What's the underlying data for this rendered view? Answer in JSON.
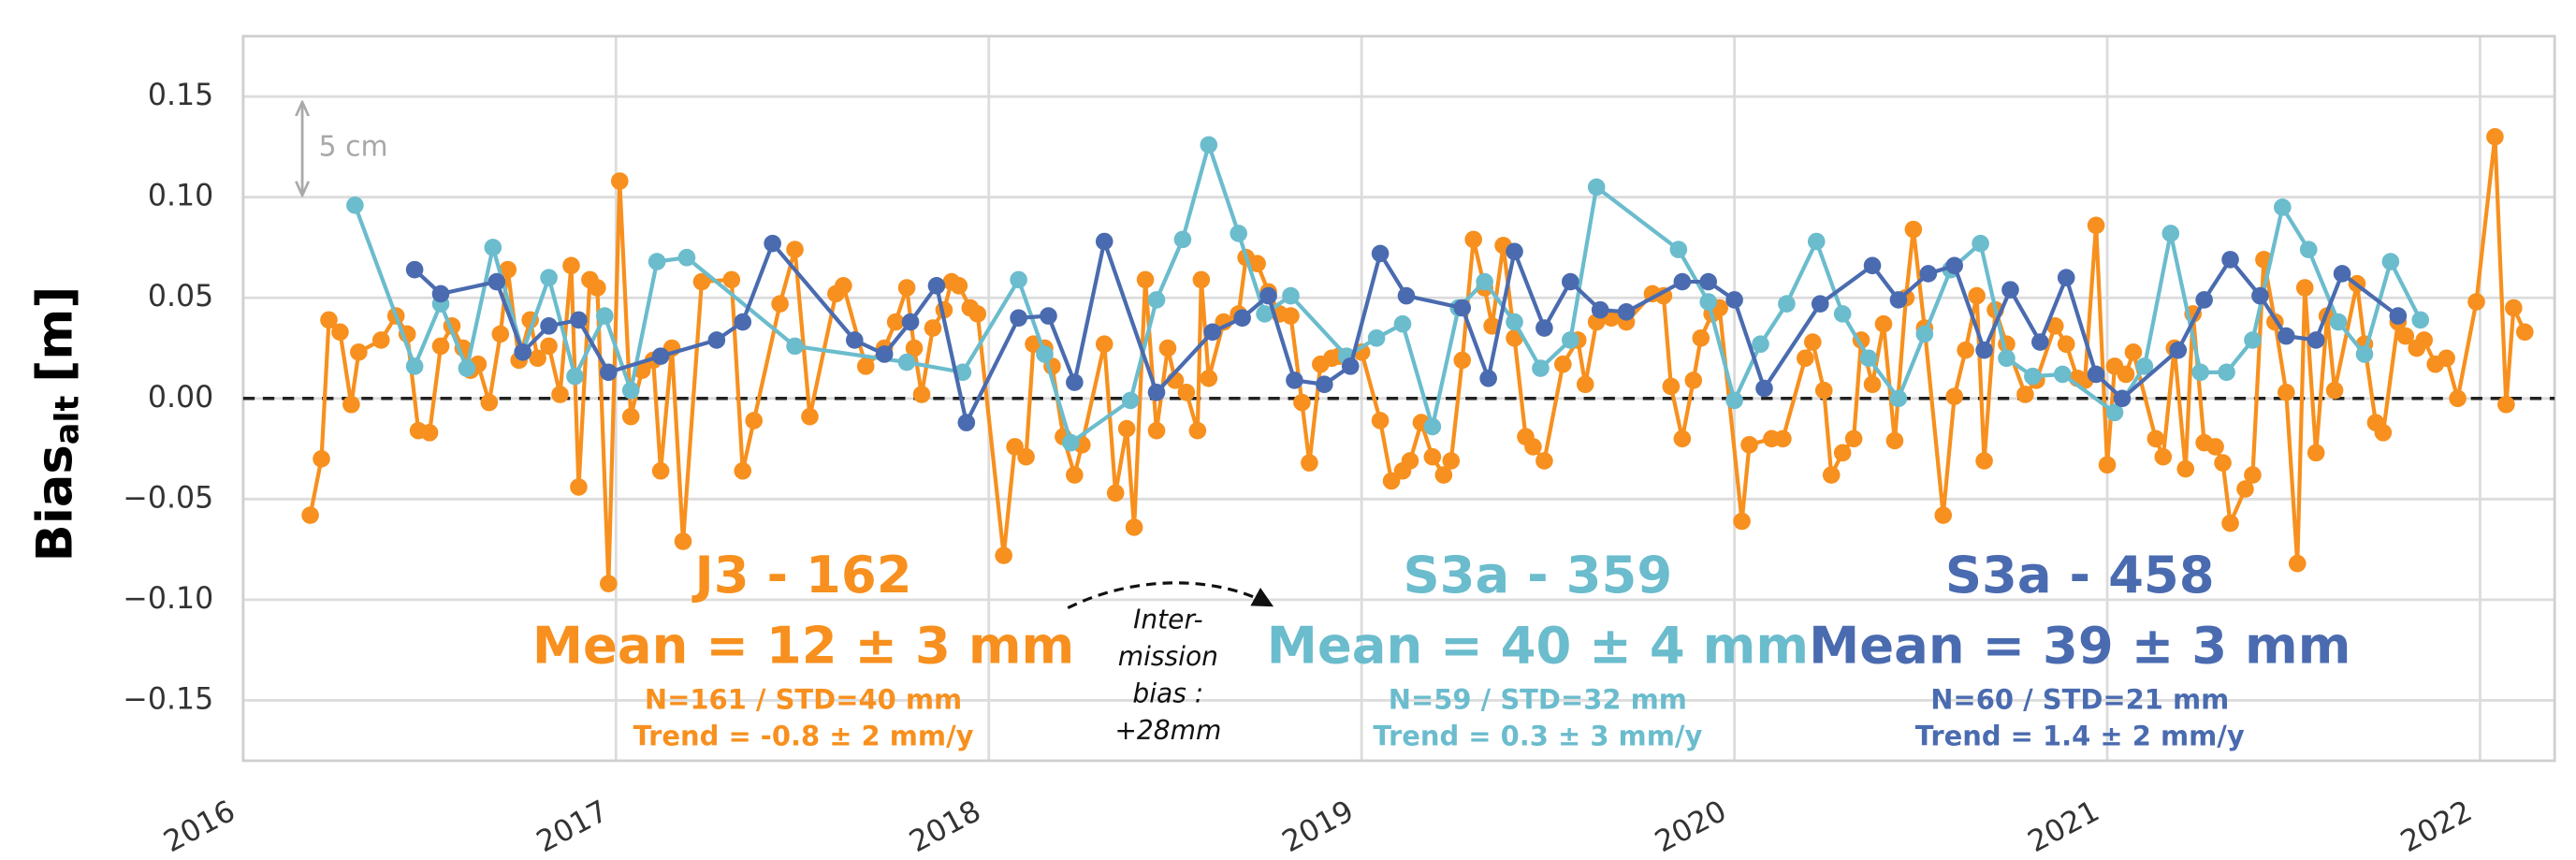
{
  "chart_data": {
    "type": "line",
    "ylabel": {
      "main": "Bias",
      "sub": "alt",
      "unit": "[m]"
    },
    "xlim": [
      2016,
      2022.2
    ],
    "xticks": [
      2016,
      2017,
      2018,
      2019,
      2020,
      2021,
      2022
    ],
    "ylim": [
      -0.18,
      0.18
    ],
    "yticks": [
      0.15,
      {
        "value": 0.1,
        "label": "0.10"
      },
      0.05,
      {
        "value": 0,
        "label": "0.00"
      },
      {
        "value": -0.05,
        "label": "−0.05"
      },
      {
        "value": -0.1,
        "label": "−0.10"
      },
      {
        "value": -0.15,
        "label": "−0.15"
      }
    ],
    "grid": true,
    "hline": 0,
    "series": [
      {
        "name": "J3 - 162",
        "color": "#f7901e",
        "mean": "Mean = 12 ± 3 mm",
        "stats": "N=161 / STD=40 mm",
        "trend": "Trend = -0.8 ± 2 mm/y",
        "x": [
          2016.18,
          2016.21,
          2016.23,
          2016.26,
          2016.29,
          2016.31,
          2016.37,
          2016.41,
          2016.44,
          2016.47,
          2016.5,
          2016.53,
          2016.56,
          2016.59,
          2016.61,
          2016.63,
          2016.66,
          2016.69,
          2016.71,
          2016.74,
          2016.77,
          2016.79,
          2016.82,
          2016.85,
          2016.88,
          2016.9,
          2016.93,
          2016.95,
          2016.98,
          2017.01,
          2017.04,
          2017.07,
          2017.1,
          2017.12,
          2017.15,
          2017.18,
          2017.23,
          2017.31,
          2017.34,
          2017.37,
          2017.44,
          2017.48,
          2017.52,
          2017.59,
          2017.61,
          2017.67,
          2017.72,
          2017.75,
          2017.78,
          2017.8,
          2017.82,
          2017.85,
          2017.88,
          2017.9,
          2017.92,
          2017.95,
          2017.97,
          2018.04,
          2018.07,
          2018.1,
          2018.12,
          2018.15,
          2018.17,
          2018.2,
          2018.23,
          2018.25,
          2018.31,
          2018.34,
          2018.37,
          2018.39,
          2018.42,
          2018.45,
          2018.48,
          2018.5,
          2018.53,
          2018.56,
          2018.57,
          2018.59,
          2018.63,
          2018.67,
          2018.69,
          2018.72,
          2018.75,
          2018.78,
          2018.81,
          2018.84,
          2018.86,
          2018.89,
          2018.92,
          2018.94,
          2019.0,
          2019.05,
          2019.08,
          2019.11,
          2019.13,
          2019.16,
          2019.19,
          2019.22,
          2019.24,
          2019.27,
          2019.3,
          2019.33,
          2019.35,
          2019.38,
          2019.41,
          2019.44,
          2019.46,
          2019.49,
          2019.54,
          2019.58,
          2019.6,
          2019.63,
          2019.67,
          2019.71,
          2019.78,
          2019.81,
          2019.83,
          2019.86,
          2019.89,
          2019.91,
          2019.94,
          2019.96,
          2020.02,
          2020.04,
          2020.1,
          2020.13,
          2020.19,
          2020.21,
          2020.24,
          2020.26,
          2020.29,
          2020.32,
          2020.34,
          2020.37,
          2020.4,
          2020.43,
          2020.46,
          2020.48,
          2020.51,
          2020.56,
          2020.59,
          2020.62,
          2020.65,
          2020.67,
          2020.7,
          2020.73,
          2020.78,
          2020.81,
          2020.86,
          2020.89,
          2020.92,
          2020.94,
          2020.97,
          2021.0,
          2021.02,
          2021.05,
          2021.07,
          2021.13,
          2021.15,
          2021.18,
          2021.21,
          2021.23,
          2021.26,
          2021.29,
          2021.31,
          2021.33,
          2021.37,
          2021.39,
          2021.42,
          2021.45,
          2021.48,
          2021.51,
          2021.53,
          2021.56,
          2021.59,
          2021.61,
          2021.67,
          2021.69,
          2021.72,
          2021.74,
          2021.78,
          2021.8,
          2021.83,
          2021.85,
          2021.88,
          2021.91,
          2021.94,
          2021.99,
          2022.04,
          2022.07,
          2022.09,
          2022.12
        ],
        "values": [
          -0.058,
          -0.03,
          0.039,
          0.033,
          -0.003,
          0.023,
          0.029,
          0.041,
          0.032,
          -0.016,
          -0.017,
          0.026,
          0.036,
          0.025,
          0.014,
          0.017,
          -0.002,
          0.032,
          0.064,
          0.019,
          0.039,
          0.02,
          0.026,
          0.002,
          0.066,
          -0.044,
          0.059,
          0.055,
          -0.092,
          0.108,
          -0.009,
          0.014,
          0.019,
          -0.036,
          0.025,
          -0.071,
          0.058,
          0.059,
          -0.036,
          -0.011,
          0.047,
          0.074,
          -0.009,
          0.052,
          0.056,
          0.016,
          0.025,
          0.038,
          0.055,
          0.025,
          0.002,
          0.035,
          0.044,
          0.058,
          0.056,
          0.045,
          0.042,
          -0.078,
          -0.024,
          -0.029,
          0.027,
          0.025,
          0.016,
          -0.019,
          -0.038,
          -0.023,
          0.027,
          -0.047,
          -0.015,
          -0.064,
          0.059,
          -0.016,
          0.025,
          0.009,
          0.003,
          -0.016,
          0.059,
          0.01,
          0.038,
          0.042,
          0.07,
          0.067,
          0.053,
          0.042,
          0.041,
          -0.002,
          -0.032,
          0.017,
          0.02,
          0.021,
          0.023,
          -0.011,
          -0.041,
          -0.036,
          -0.031,
          -0.012,
          -0.029,
          -0.038,
          -0.031,
          0.019,
          0.079,
          0.055,
          0.036,
          0.076,
          0.03,
          -0.019,
          -0.024,
          -0.031,
          0.017,
          0.029,
          0.007,
          0.038,
          0.04,
          0.038,
          0.052,
          0.051,
          0.006,
          -0.02,
          0.009,
          0.03,
          0.042,
          0.045,
          -0.061,
          -0.023,
          -0.02,
          -0.02,
          0.02,
          0.028,
          0.004,
          -0.038,
          -0.027,
          -0.02,
          0.029,
          0.007,
          0.037,
          -0.021,
          0.05,
          0.084,
          0.035,
          -0.058,
          0.001,
          0.024,
          0.051,
          -0.031,
          0.044,
          0.027,
          0.002,
          0.009,
          0.036,
          0.027,
          0.01,
          0.009,
          0.086,
          -0.033,
          0.016,
          0.012,
          0.023,
          -0.02,
          -0.029,
          0.025,
          -0.035,
          0.042,
          -0.022,
          -0.024,
          -0.032,
          -0.062,
          -0.045,
          -0.038,
          0.069,
          0.038,
          0.003,
          -0.082,
          0.055,
          -0.027,
          0.041,
          0.004,
          0.057,
          0.027,
          -0.012,
          -0.017,
          0.038,
          0.031,
          0.025,
          0.029,
          0.017,
          0.02,
          0.0,
          0.048,
          0.13,
          -0.003,
          0.045,
          0.033
        ]
      },
      {
        "name": "S3a - 359",
        "color": "#6bbccd",
        "mean": "Mean = 40 ± 4 mm",
        "stats": "N=59 / STD=32 mm",
        "trend": "Trend = 0.3 ± 3 mm/y",
        "x": [
          2016.3,
          2016.46,
          2016.53,
          2016.6,
          2016.67,
          2016.75,
          2016.82,
          2016.89,
          2016.97,
          2017.04,
          2017.11,
          2017.19,
          2017.48,
          2017.78,
          2017.93,
          2018.08,
          2018.15,
          2018.22,
          2018.38,
          2018.45,
          2018.52,
          2018.59,
          2018.67,
          2018.74,
          2018.81,
          2018.96,
          2019.04,
          2019.11,
          2019.19,
          2019.26,
          2019.33,
          2019.41,
          2019.48,
          2019.56,
          2019.63,
          2019.85,
          2019.93,
          2020.0,
          2020.07,
          2020.14,
          2020.22,
          2020.29,
          2020.36,
          2020.44,
          2020.51,
          2020.58,
          2020.66,
          2020.73,
          2020.8,
          2020.88,
          2021.02,
          2021.1,
          2021.17,
          2021.25,
          2021.32,
          2021.39,
          2021.47,
          2021.54,
          2021.62,
          2021.69,
          2021.76,
          2021.84
        ],
        "values": [
          0.096,
          0.016,
          0.047,
          0.015,
          0.075,
          0.023,
          0.06,
          0.011,
          0.041,
          0.004,
          0.068,
          0.07,
          0.026,
          0.018,
          0.013,
          0.059,
          0.022,
          -0.022,
          -0.001,
          0.049,
          0.079,
          0.126,
          0.082,
          0.042,
          0.051,
          0.021,
          0.03,
          0.037,
          -0.014,
          0.045,
          0.058,
          0.038,
          0.015,
          0.029,
          0.105,
          0.074,
          0.048,
          -0.001,
          0.027,
          0.047,
          0.078,
          0.042,
          0.02,
          0.0,
          0.032,
          0.064,
          0.077,
          0.02,
          0.011,
          0.012,
          -0.007,
          0.016,
          0.082,
          0.013,
          0.013,
          0.029,
          0.095,
          0.074,
          0.038,
          0.022,
          0.068,
          0.039
        ]
      },
      {
        "name": "S3a - 458",
        "color": "#4a6baf",
        "mean": "Mean = 39 ± 3 mm",
        "stats": "N=60 / STD=21 mm",
        "trend": "Trend = 1.4 ± 2 mm/y",
        "x": [
          2016.46,
          2016.53,
          2016.68,
          2016.75,
          2016.82,
          2016.9,
          2016.98,
          2017.12,
          2017.27,
          2017.34,
          2017.42,
          2017.64,
          2017.72,
          2017.79,
          2017.86,
          2017.94,
          2018.08,
          2018.16,
          2018.23,
          2018.31,
          2018.45,
          2018.6,
          2018.68,
          2018.75,
          2018.82,
          2018.9,
          2018.97,
          2019.05,
          2019.12,
          2019.27,
          2019.34,
          2019.41,
          2019.49,
          2019.56,
          2019.64,
          2019.71,
          2019.86,
          2019.93,
          2020.0,
          2020.08,
          2020.23,
          2020.37,
          2020.44,
          2020.52,
          2020.59,
          2020.67,
          2020.74,
          2020.82,
          2020.89,
          2020.97,
          2021.04,
          2021.19,
          2021.26,
          2021.33,
          2021.41,
          2021.48,
          2021.56,
          2021.63,
          2021.78
        ],
        "values": [
          0.064,
          0.052,
          0.058,
          0.023,
          0.036,
          0.039,
          0.013,
          0.021,
          0.029,
          0.038,
          0.077,
          0.029,
          0.022,
          0.038,
          0.056,
          -0.012,
          0.04,
          0.041,
          0.008,
          0.078,
          0.003,
          0.033,
          0.04,
          0.051,
          0.009,
          0.007,
          0.016,
          0.072,
          0.051,
          0.045,
          0.01,
          0.073,
          0.035,
          0.058,
          0.044,
          0.043,
          0.058,
          0.058,
          0.049,
          0.005,
          0.047,
          0.066,
          0.049,
          0.062,
          0.066,
          0.024,
          0.054,
          0.028,
          0.06,
          0.012,
          0.0,
          0.024,
          0.049,
          0.069,
          0.051,
          0.031,
          0.029,
          0.062,
          0.041
        ]
      }
    ],
    "annotations": {
      "inter_mission": [
        "Inter-",
        "mission",
        "bias :",
        "+28mm"
      ],
      "scale_bar": "5 cm"
    }
  }
}
